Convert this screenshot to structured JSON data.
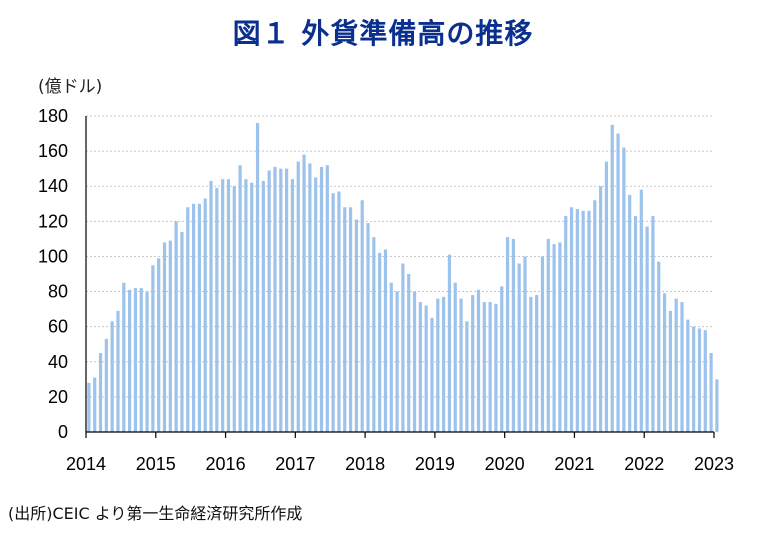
{
  "chart_data": {
    "type": "bar",
    "title": "図１ 外貨準備高の推移",
    "ylabel": "(億ドル)",
    "source": "(出所)CEIC より第一生命経済研究所作成",
    "ylim": [
      0,
      180
    ],
    "yticks": [
      0,
      20,
      40,
      60,
      80,
      100,
      120,
      140,
      160,
      180
    ],
    "xtick_labels": [
      "2014",
      "2015",
      "2016",
      "2017",
      "2018",
      "2019",
      "2020",
      "2021",
      "2022",
      "2023"
    ],
    "x_start": "2014-01",
    "frequency": "monthly",
    "grid": true,
    "bar_color": "#9dc3ec",
    "values": [
      28,
      31,
      45,
      53,
      63,
      69,
      85,
      81,
      82,
      82,
      80,
      95,
      99,
      108,
      109,
      120,
      114,
      128,
      130,
      130,
      133,
      143,
      139,
      144,
      144,
      140,
      152,
      144,
      142,
      176,
      143,
      149,
      151,
      150,
      150,
      144,
      154,
      158,
      153,
      145,
      151,
      152,
      136,
      137,
      128,
      128,
      121,
      132,
      119,
      111,
      102,
      104,
      85,
      80,
      96,
      90,
      80,
      74,
      72,
      65,
      76,
      77,
      101,
      85,
      76,
      63,
      78,
      81,
      74,
      74,
      73,
      83,
      111,
      110,
      96,
      100,
      77,
      78,
      100,
      110,
      107,
      108,
      123,
      128,
      127,
      126,
      126,
      132,
      140,
      154,
      175,
      170,
      162,
      135,
      123,
      138,
      117,
      123,
      97,
      79,
      69,
      76,
      74,
      64,
      60,
      59,
      58,
      45,
      30
    ]
  }
}
